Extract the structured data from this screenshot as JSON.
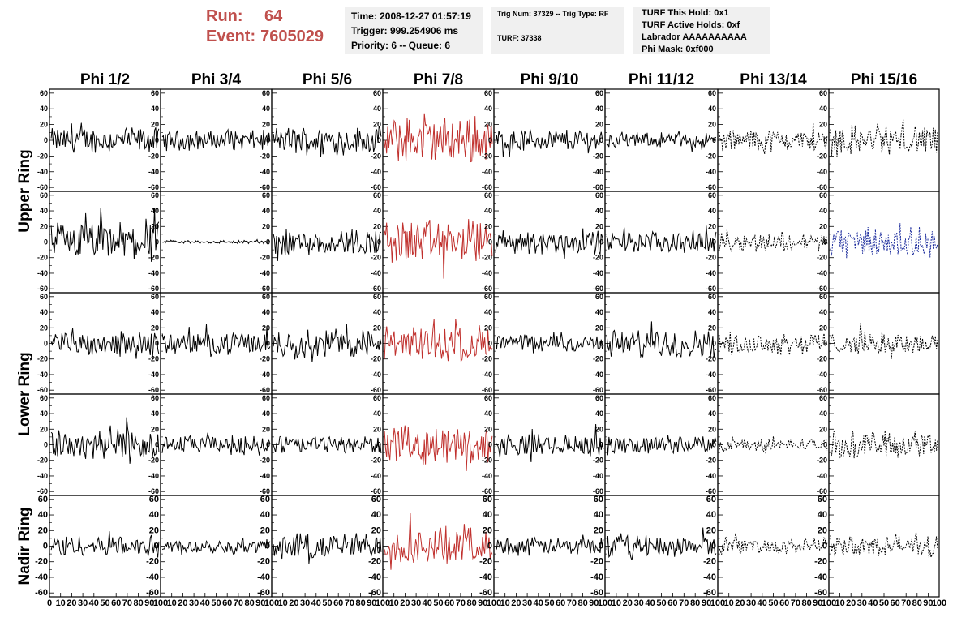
{
  "header": {
    "run_label": "Run:",
    "run_value": "64",
    "event_label": "Event:",
    "event_value": "7605029"
  },
  "info_time": {
    "time": "Time: 2008-12-27 01:57:19",
    "trigger": "Trigger: 999.254906 ms",
    "priority": "Priority: 6 -- Queue: 6"
  },
  "info_trig": {
    "trig": "Trig Num: 37329 -- Trig Type: RF",
    "turf": "TURF: 37338"
  },
  "info_turf": {
    "hold": "TURF This Hold: 0x1",
    "active": "TURF Active Holds: 0xf",
    "labrador": "Labrador AAAAAAAAAA",
    "mask": "Phi Mask: 0xf000"
  },
  "colors": {
    "normal": "#000000",
    "triggered": "#c0302d",
    "masked_blue": "#1a2a9c",
    "header_red": "#c0504d",
    "info_bg": "#f0f0f0"
  },
  "chart_data": {
    "type": "line",
    "columns": [
      "Phi 1/2",
      "Phi 3/4",
      "Phi 5/6",
      "Phi 7/8",
      "Phi 9/10",
      "Phi 11/12",
      "Phi 13/14",
      "Phi 15/16"
    ],
    "ring_labels": [
      {
        "text": "Upper Ring"
      },
      {
        "text": "Lower Ring"
      },
      {
        "text": "Nadir Ring"
      }
    ],
    "x_range": [
      0,
      100
    ],
    "y_range": [
      -65,
      65
    ],
    "y_ticks": [
      -60,
      -40,
      -20,
      0,
      20,
      40,
      60
    ],
    "x_ticks": [
      0,
      10,
      20,
      30,
      40,
      50,
      60,
      70,
      80,
      90,
      100
    ],
    "rows": [
      {
        "ring": "upper",
        "amplitudes": [
          14,
          11,
          15,
          25,
          13,
          8,
          12,
          17
        ],
        "styles": [
          "normal",
          "normal",
          "normal",
          "triggered",
          "normal",
          "normal",
          "dashed",
          "dashed"
        ]
      },
      {
        "ring": "upper",
        "amplitudes": [
          22,
          2,
          15,
          25,
          13,
          12,
          10,
          16
        ],
        "styles": [
          "normal",
          "normal",
          "normal",
          "triggered",
          "normal",
          "normal",
          "dashed",
          "blue_dashed"
        ]
      },
      {
        "ring": "lower",
        "amplitudes": [
          13,
          12,
          16,
          20,
          10,
          15,
          12,
          12
        ],
        "styles": [
          "normal",
          "normal",
          "normal",
          "triggered",
          "normal",
          "normal",
          "dashed",
          "dashed"
        ]
      },
      {
        "ring": "lower",
        "amplitudes": [
          20,
          10,
          10,
          20,
          12,
          10,
          7,
          15
        ],
        "styles": [
          "normal",
          "normal",
          "normal",
          "triggered",
          "normal",
          "normal",
          "dashed",
          "dashed"
        ]
      },
      {
        "ring": "nadir",
        "amplitudes": [
          12,
          8,
          15,
          20,
          10,
          12,
          9,
          13
        ],
        "styles": [
          "normal",
          "normal",
          "normal",
          "triggered",
          "normal",
          "normal",
          "dashed",
          "dashed"
        ]
      }
    ]
  }
}
